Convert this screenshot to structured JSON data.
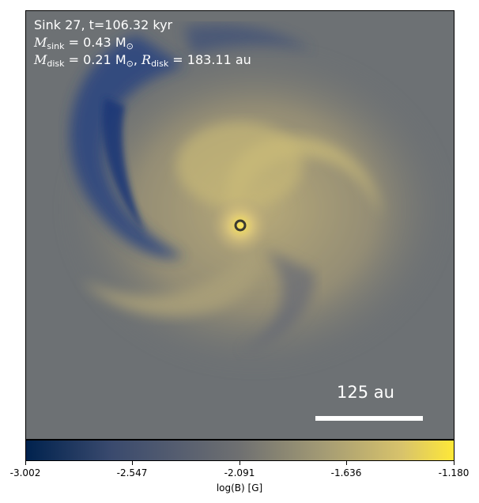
{
  "header": {
    "title": "Sink 27, t=106.32 kyr",
    "sink_label": "M",
    "sink_sub": "sink",
    "sink_value": " = 0.43 M",
    "sink_unit_sub": "⊙",
    "disk_label": "M",
    "disk_sub": "disk",
    "disk_value": " = 0.21 M",
    "disk_unit_sub": "⊙",
    "radius_sep": ", ",
    "radius_label": "R",
    "radius_sub": "disk",
    "radius_value": " = 183.11 au"
  },
  "scale": {
    "label": "125 au"
  },
  "colorbar": {
    "ticks": [
      "-3.002",
      "-2.547",
      "-2.091",
      "-1.636",
      "-1.180"
    ],
    "label": "log(B) [G]"
  },
  "colors": {
    "background": "#6d7174",
    "dark": "#1f3a78",
    "bright": "#fee838",
    "marker": "#3b3a30"
  }
}
